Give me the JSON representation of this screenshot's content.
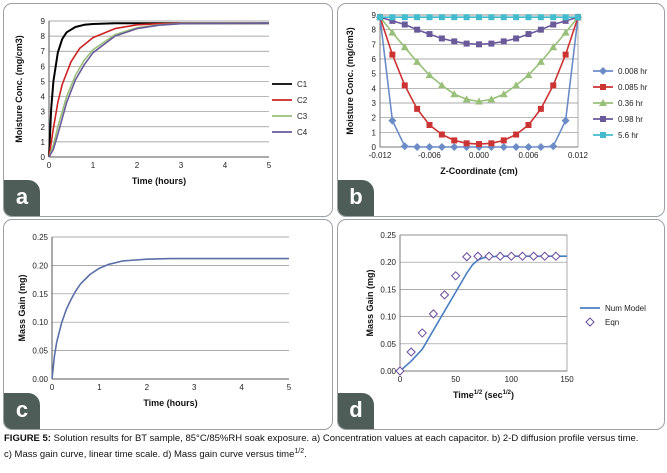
{
  "chart_data": [
    {
      "panel": "a",
      "type": "line",
      "title": "",
      "xlabel": "Time (hours)",
      "ylabel": "Moisture Conc. (mg/cm3)",
      "xlim": [
        0,
        5
      ],
      "ylim": [
        0,
        9
      ],
      "xticks": [
        "0",
        "1",
        "2",
        "3",
        "4",
        "5"
      ],
      "yticks": [
        "0",
        "1",
        "2",
        "3",
        "4",
        "5",
        "6",
        "7",
        "8",
        "9"
      ],
      "legend_position": "right",
      "series": [
        {
          "name": "C1",
          "color": "#000000",
          "x": [
            0,
            0.05,
            0.1,
            0.2,
            0.3,
            0.4,
            0.6,
            0.8,
            1.0,
            1.5,
            2,
            3,
            5
          ],
          "y": [
            0,
            3.2,
            5.0,
            6.9,
            7.8,
            8.25,
            8.6,
            8.75,
            8.8,
            8.85,
            8.85,
            8.85,
            8.85
          ]
        },
        {
          "name": "C2",
          "color": "#cc2222",
          "x": [
            0,
            0.1,
            0.2,
            0.3,
            0.5,
            0.7,
            1.0,
            1.5,
            2,
            2.5,
            3,
            5
          ],
          "y": [
            0,
            1.9,
            3.6,
            4.8,
            6.3,
            7.2,
            7.9,
            8.5,
            8.75,
            8.82,
            8.85,
            8.85
          ]
        },
        {
          "name": "C3",
          "color": "#99c07a",
          "x": [
            0,
            0.1,
            0.2,
            0.4,
            0.6,
            0.8,
            1.0,
            1.5,
            2,
            2.5,
            3,
            5
          ],
          "y": [
            0,
            0.8,
            2.0,
            4.0,
            5.4,
            6.4,
            7.1,
            8.1,
            8.55,
            8.75,
            8.83,
            8.85
          ]
        },
        {
          "name": "C4",
          "color": "#6a5a9a",
          "x": [
            0,
            0.1,
            0.2,
            0.4,
            0.6,
            0.8,
            1.0,
            1.5,
            2,
            2.5,
            3,
            5
          ],
          "y": [
            0,
            0.5,
            1.5,
            3.6,
            5.1,
            6.1,
            6.9,
            8.0,
            8.5,
            8.72,
            8.82,
            8.85
          ]
        }
      ]
    },
    {
      "panel": "b",
      "type": "line",
      "title": "",
      "xlabel": "Z-Coordinate (cm)",
      "ylabel": "Moisture Conc. (mg/cm3)",
      "xlim": [
        -0.012,
        0.012
      ],
      "ylim": [
        0,
        9
      ],
      "xticks": [
        "-0.012",
        "-0.006",
        "0.000",
        "0.006",
        "0.012"
      ],
      "yticks": [
        "0",
        "1",
        "2",
        "3",
        "4",
        "5",
        "6",
        "7",
        "8",
        "9"
      ],
      "legend_position": "right",
      "x": [
        -0.012,
        -0.0105,
        -0.009,
        -0.0075,
        -0.006,
        -0.0045,
        -0.003,
        -0.0015,
        0,
        0.0015,
        0.003,
        0.0045,
        0.006,
        0.0075,
        0.009,
        0.0105,
        0.012
      ],
      "series": [
        {
          "name": "0.008 hr",
          "color": "#6b8cc7",
          "marker": "diamond",
          "y": [
            8.85,
            1.8,
            0.05,
            0,
            0,
            0,
            0,
            0,
            0,
            0,
            0,
            0,
            0,
            0,
            0.05,
            1.8,
            8.85
          ]
        },
        {
          "name": "0.085 hr",
          "color": "#cc3333",
          "marker": "square",
          "y": [
            8.85,
            6.3,
            4.2,
            2.6,
            1.5,
            0.85,
            0.45,
            0.25,
            0.2,
            0.25,
            0.45,
            0.85,
            1.5,
            2.6,
            4.2,
            6.3,
            8.85
          ]
        },
        {
          "name": "0.36 hr",
          "color": "#99c07a",
          "marker": "triangle",
          "y": [
            8.85,
            7.8,
            6.8,
            5.8,
            4.9,
            4.2,
            3.6,
            3.25,
            3.1,
            3.25,
            3.6,
            4.2,
            4.9,
            5.8,
            6.8,
            7.8,
            8.85
          ]
        },
        {
          "name": "0.98 hr",
          "color": "#6a5a9a",
          "marker": "square",
          "y": [
            8.85,
            8.6,
            8.35,
            8.0,
            7.7,
            7.4,
            7.2,
            7.05,
            7.0,
            7.05,
            7.2,
            7.4,
            7.7,
            8.0,
            8.35,
            8.6,
            8.85
          ]
        },
        {
          "name": "5.6 hr",
          "color": "#44bbcc",
          "marker": "square",
          "y": [
            8.85,
            8.85,
            8.85,
            8.85,
            8.85,
            8.85,
            8.85,
            8.85,
            8.85,
            8.85,
            8.85,
            8.85,
            8.85,
            8.85,
            8.85,
            8.85,
            8.85
          ]
        }
      ]
    },
    {
      "panel": "c",
      "type": "line",
      "title": "",
      "xlabel": "Time (hours)",
      "ylabel": "Mass Gain (mg)",
      "xlim": [
        0,
        5
      ],
      "ylim": [
        0,
        0.25
      ],
      "xticks": [
        "0",
        "1",
        "2",
        "3",
        "4",
        "5"
      ],
      "yticks": [
        "0.00",
        "0.05",
        "0.10",
        "0.15",
        "0.20",
        "0.25"
      ],
      "series": [
        {
          "name": "Mass gain",
          "color": "#5b6fa8",
          "x": [
            0,
            0.05,
            0.1,
            0.2,
            0.3,
            0.4,
            0.5,
            0.6,
            0.8,
            1.0,
            1.2,
            1.5,
            2,
            2.5,
            3,
            5
          ],
          "y": [
            0,
            0.04,
            0.065,
            0.098,
            0.122,
            0.14,
            0.155,
            0.167,
            0.184,
            0.195,
            0.202,
            0.208,
            0.211,
            0.212,
            0.212,
            0.212
          ]
        }
      ]
    },
    {
      "panel": "d",
      "type": "line",
      "title": "",
      "xlabel": "Time",
      "xlabel_exp": "1/2",
      "xlabel_unit_open": " (sec",
      "xlabel_unit_exp": "1/2",
      "xlabel_unit_close": ")",
      "ylabel": "Mass Gain (mg)",
      "xlim": [
        0,
        150
      ],
      "ylim": [
        0,
        0.25
      ],
      "xticks": [
        "0",
        "50",
        "100",
        "150"
      ],
      "yticks": [
        "0.00",
        "0.05",
        "0.10",
        "0.15",
        "0.20",
        "0.25"
      ],
      "legend_position": "right",
      "series": [
        {
          "name": "Num Model",
          "color": "#4a7fc1",
          "x": [
            0,
            10,
            20,
            30,
            40,
            50,
            60,
            65,
            70,
            75,
            80,
            90,
            100,
            150
          ],
          "y": [
            0,
            0.018,
            0.04,
            0.075,
            0.11,
            0.145,
            0.18,
            0.195,
            0.204,
            0.208,
            0.21,
            0.211,
            0.211,
            0.211
          ]
        },
        {
          "name": "Eqn",
          "color": "#6a4a9a",
          "marker": "diamond-open",
          "x": [
            0,
            10,
            20,
            30,
            40,
            50,
            60,
            70,
            80,
            90,
            100,
            110,
            120,
            130,
            140
          ],
          "y": [
            0,
            0.035,
            0.07,
            0.105,
            0.14,
            0.175,
            0.21,
            0.211,
            0.211,
            0.211,
            0.211,
            0.211,
            0.211,
            0.211,
            0.211
          ]
        }
      ]
    }
  ],
  "badges": {
    "a": "a",
    "b": "b",
    "c": "c",
    "d": "d"
  },
  "caption": {
    "label": "FIGURE 5:",
    "line1": " Solution results for BT sample, 85°C/85%RH soak exposure. a) Concentration values at each capacitor.  b) 2-D diffusion profile versus time.",
    "line2": "c)  Mass gain curve, linear time scale. d) Mass gain curve versus time",
    "line2_exp": "1/2",
    "line2_end": "."
  }
}
